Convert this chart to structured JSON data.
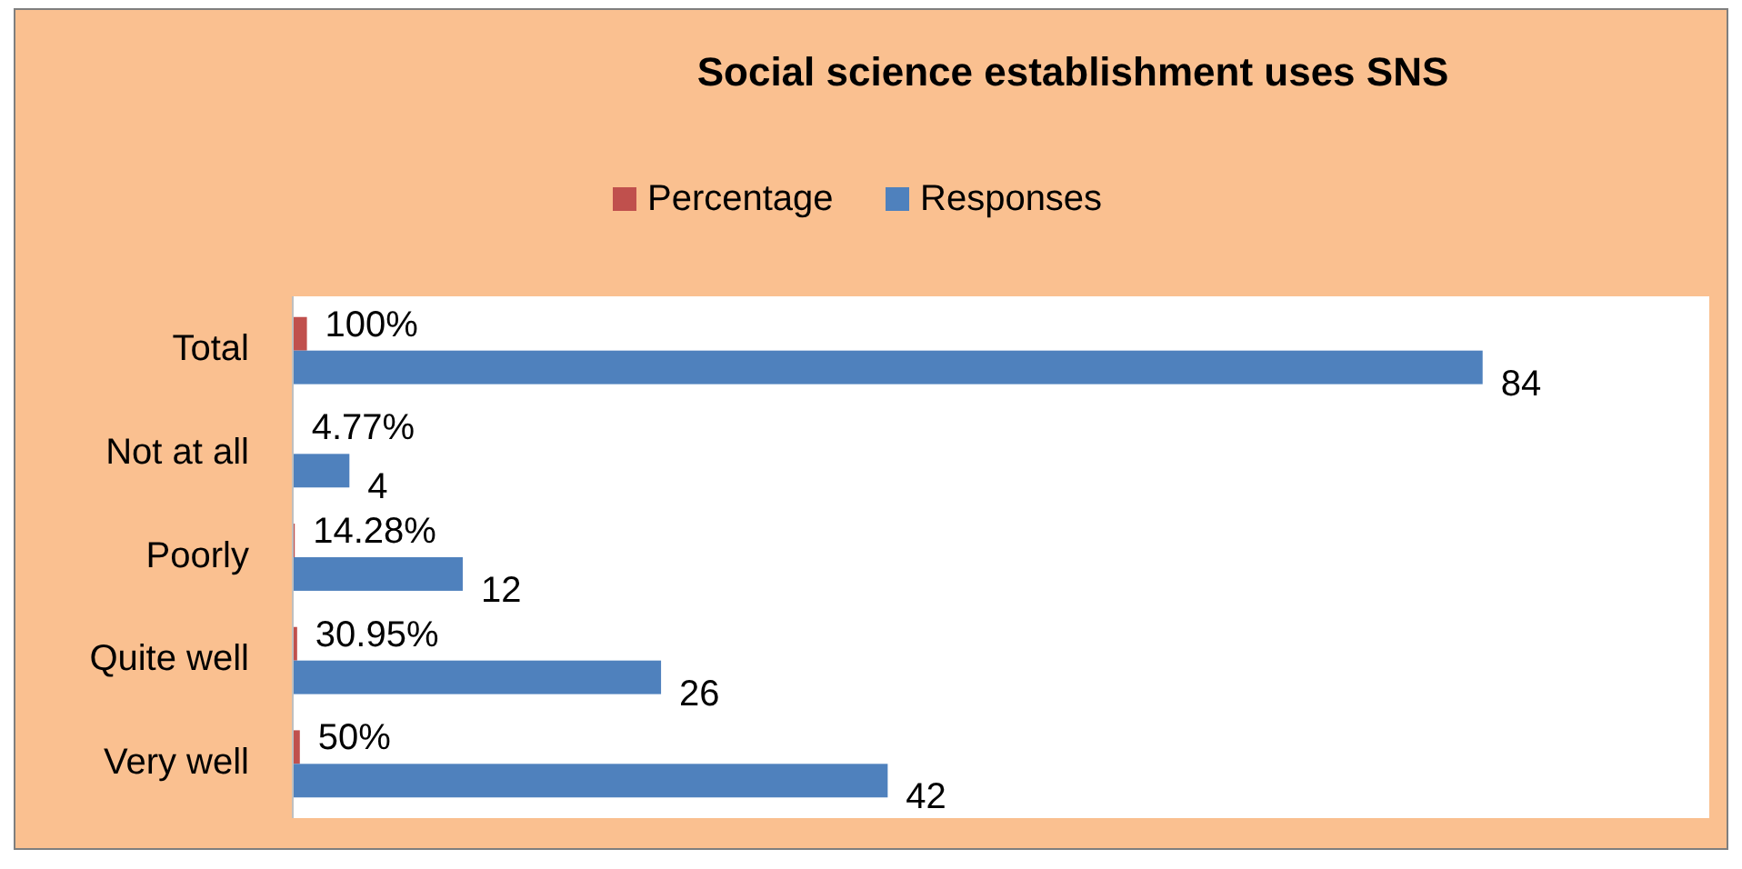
{
  "chart_data": {
    "type": "bar",
    "orientation": "horizontal",
    "title": "Social science establishment uses SNS",
    "categories": [
      "Total",
      "Not at all",
      "Poorly",
      "Quite well",
      "Very well"
    ],
    "xlim": [
      0,
      100
    ],
    "tick_labels": "y",
    "legend": "top",
    "series": [
      {
        "name": "Percentage",
        "color": "#c0504d",
        "values": [
          1,
          0.0477,
          0.1428,
          0.3095,
          0.5
        ],
        "value_labels": [
          "100%",
          "4.77%",
          "14.28%",
          "30.95%",
          "50%"
        ]
      },
      {
        "name": "Responses",
        "color": "#4f81bd",
        "values": [
          84,
          4,
          12,
          26,
          42
        ],
        "value_labels": [
          "84",
          "4",
          "12",
          "26",
          "42"
        ]
      }
    ]
  }
}
